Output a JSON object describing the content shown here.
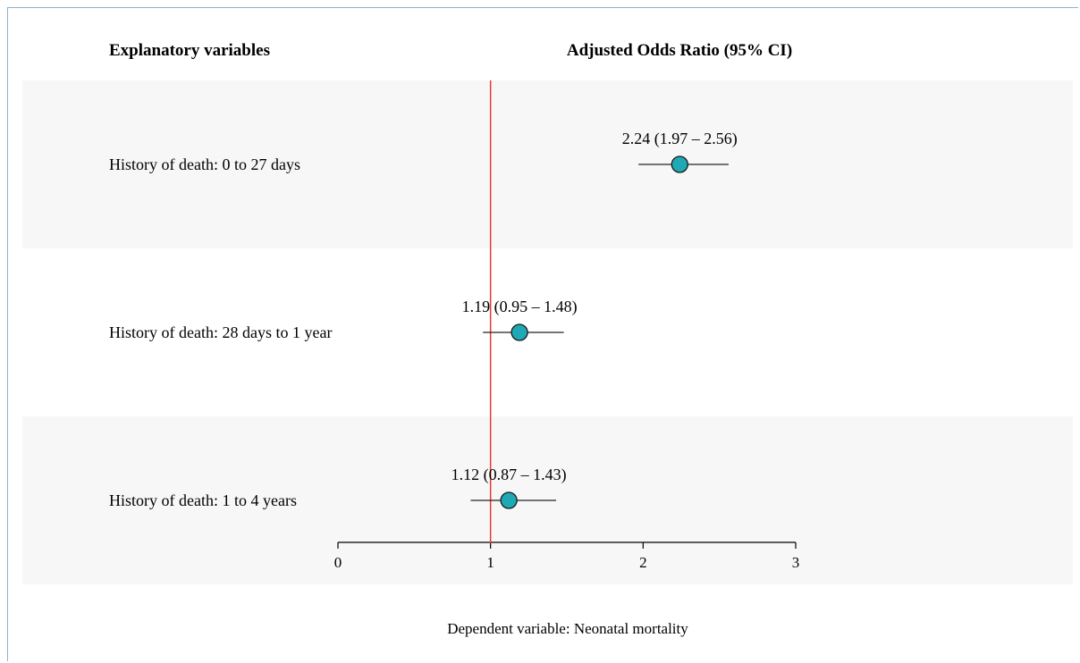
{
  "header": {
    "left_title": "Explanatory variables",
    "right_title": "Adjusted Odds Ratio (95% CI)"
  },
  "footer": {
    "note": "Dependent variable: Neonatal mortality"
  },
  "colors": {
    "marker_fill": "#1fa9b5",
    "reference_line": "#e8393a",
    "band_fill": "#f7f7f7"
  },
  "chart_data": {
    "type": "scatter",
    "subtype": "forest-plot",
    "xlim": [
      0,
      3
    ],
    "x_ticks": [
      0,
      1,
      2,
      3
    ],
    "x_tick_labels": [
      "0",
      "1",
      "2",
      "3"
    ],
    "reference_value": 1,
    "grid": false,
    "rows": [
      {
        "label": "History of death: 0 to 27 days",
        "or": 2.24,
        "ci_low": 1.97,
        "ci_high": 2.56,
        "text": "2.24 (1.97 – 2.56)"
      },
      {
        "label": "History of death: 28 days to 1 year",
        "or": 1.19,
        "ci_low": 0.95,
        "ci_high": 1.48,
        "text": "1.19 (0.95 – 1.48)"
      },
      {
        "label": "History of death: 1 to 4 years",
        "or": 1.12,
        "ci_low": 0.87,
        "ci_high": 1.43,
        "text": "1.12 (0.87 – 1.43)"
      }
    ]
  }
}
